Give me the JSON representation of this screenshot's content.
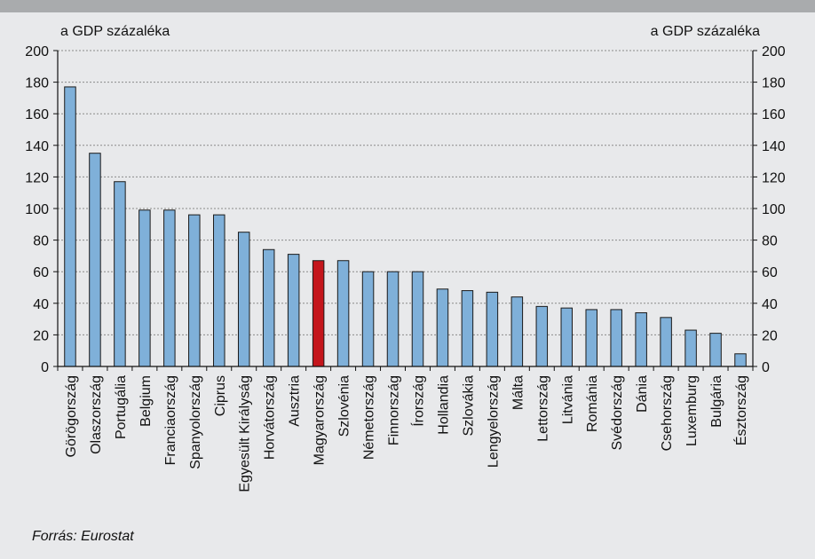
{
  "chart_data": {
    "type": "bar",
    "ylabel_left": "a GDP százaléka",
    "ylabel_right": "a GDP százaléka",
    "ylim": [
      0,
      200
    ],
    "yticks": [
      0,
      20,
      40,
      60,
      80,
      100,
      120,
      140,
      160,
      180,
      200
    ],
    "grid": true,
    "categories": [
      "Görögország",
      "Olaszország",
      "Portugália",
      "Belgium",
      "Franciaország",
      "Spanyolország",
      "Ciprus",
      "Egyesült Királyság",
      "Horvátország",
      "Ausztria",
      "Magyarország",
      "Szlovénia",
      "Németország",
      "Finnország",
      "Írország",
      "Hollandia",
      "Szlovákia",
      "Lengyelország",
      "Málta",
      "Lettország",
      "Litvánia",
      "Románia",
      "Svédország",
      "Dánia",
      "Csehország",
      "Luxemburg",
      "Bulgária",
      "Észtország"
    ],
    "values": [
      177,
      135,
      117,
      99,
      99,
      96,
      96,
      85,
      74,
      71,
      67,
      67,
      60,
      60,
      60,
      49,
      48,
      47,
      44,
      38,
      37,
      36,
      36,
      34,
      31,
      23,
      21,
      8
    ],
    "highlight": "Magyarország",
    "colors": {
      "bar": "#7fb0d9",
      "highlight": "#c4161c",
      "bar_stroke": "#1a1a1a",
      "grid": "#8a8a8a"
    }
  },
  "footer": {
    "source": "Forrás: Eurostat"
  }
}
